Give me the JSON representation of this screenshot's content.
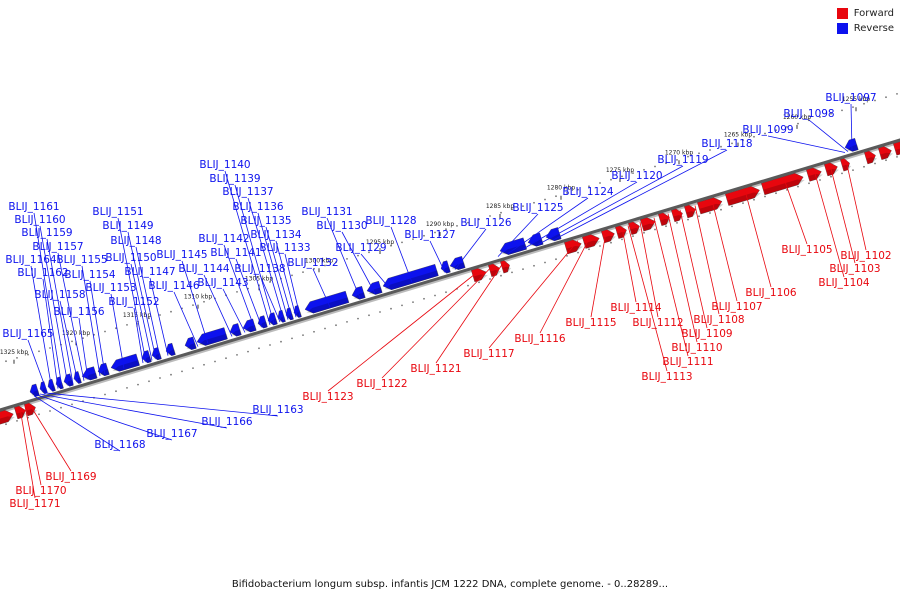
{
  "legend": {
    "forward_label": "Forward",
    "forward_color": "#e8060e",
    "reverse_label": "Reverse",
    "reverse_color": "#0d12ee"
  },
  "caption": "Bifidobacterium longum subsp. infantis JCM 1222 DNA, complete genome. - 0..28289...",
  "scale_labels": [
    "1255 kbp",
    "1260 kbp",
    "1265 kbp",
    "1270 kbp",
    "1275 kbp",
    "1280 kbp",
    "1285 kbp",
    "1290 kbp",
    "1295 kbp",
    "1300 kbp",
    "1305 kbp",
    "1310 kbp",
    "1315 kbp",
    "1320 kbp",
    "1325 kbp"
  ],
  "forward_genes": [
    "BLIJ_1102",
    "BLIJ_1103",
    "BLIJ_1104",
    "BLIJ_1105",
    "BLIJ_1106",
    "BLIJ_1107",
    "BLIJ_1108",
    "BLIJ_1109",
    "BLIJ_1110",
    "BLIJ_1111",
    "BLIJ_1112",
    "BLIJ_1113",
    "BLIJ_1114",
    "BLIJ_1115",
    "BLIJ_1116",
    "BLIJ_1117",
    "BLIJ_1121",
    "BLIJ_1122",
    "BLIJ_1123",
    "BLIJ_1169",
    "BLIJ_1170",
    "BLIJ_1171"
  ],
  "reverse_genes": [
    "BLIJ_1097",
    "BLIJ_1098",
    "BLIJ_1099",
    "BLIJ_1118",
    "BLIJ_1119",
    "BLIJ_1120",
    "BLIJ_1124",
    "BLIJ_1125",
    "BLIJ_1126",
    "BLIJ_1127",
    "BLIJ_1128",
    "BLIJ_1129",
    "BLIJ_1130",
    "BLIJ_1131",
    "BLIJ_1132",
    "BLIJ_1133",
    "BLIJ_1134",
    "BLIJ_1135",
    "BLIJ_1136",
    "BLIJ_1137",
    "BLIJ_1138",
    "BLIJ_1139",
    "BLIJ_1140",
    "BLIJ_1141",
    "BLIJ_1142",
    "BLIJ_1143",
    "BLIJ_1144",
    "BLIJ_1145",
    "BLIJ_1146",
    "BLIJ_1147",
    "BLIJ_1148",
    "BLIJ_1149",
    "BLIJ_1150",
    "BLIJ_1151",
    "BLIJ_1152",
    "BLIJ_1153",
    "BLIJ_1154",
    "BLIJ_1155",
    "BLIJ_1156",
    "BLIJ_1157",
    "BLIJ_1158",
    "BLIJ_1159",
    "BLIJ_1160",
    "BLIJ_1161",
    "BLIJ_1162",
    "BLIJ_1163",
    "BLIJ_1164",
    "BLIJ_1165",
    "BLIJ_1166",
    "BLIJ_1167",
    "BLIJ_1168"
  ]
}
